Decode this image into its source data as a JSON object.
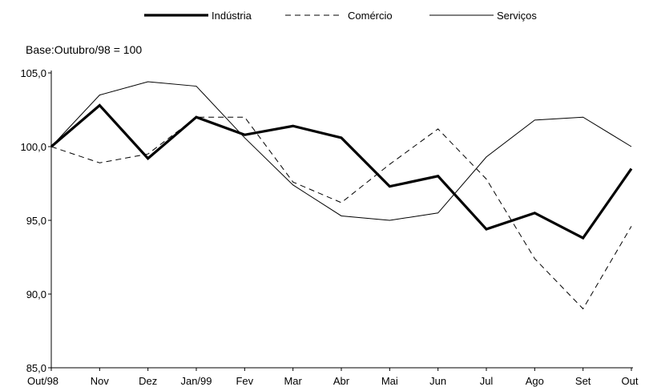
{
  "chart_data": {
    "type": "line",
    "title": "",
    "subtitle": "Base:Outubro/98 = 100",
    "xlabel": "",
    "ylabel": "",
    "categories": [
      "Out/98",
      "Nov",
      "Dez",
      "Jan/99",
      "Fev",
      "Mar",
      "Abr",
      "Mai",
      "Jun",
      "Jul",
      "Ago",
      "Set",
      "Out"
    ],
    "ylim": [
      85,
      105
    ],
    "yticks": [
      85,
      90,
      95,
      100,
      105
    ],
    "ytick_labels": [
      "85,0",
      "90,0",
      "95,0",
      "100,0",
      "105,0"
    ],
    "grid": false,
    "legend_position": "top",
    "series": [
      {
        "name": "Indústria",
        "style": "thick-solid",
        "color": "#000000",
        "values": [
          100.0,
          102.8,
          99.2,
          102.0,
          100.8,
          101.4,
          100.6,
          97.3,
          98.0,
          94.4,
          95.5,
          93.8,
          98.5
        ]
      },
      {
        "name": "Comércio",
        "style": "dashed",
        "color": "#000000",
        "values": [
          100.0,
          98.9,
          99.5,
          102.0,
          102.0,
          97.6,
          96.2,
          98.8,
          101.2,
          97.8,
          92.4,
          89.0,
          94.6
        ]
      },
      {
        "name": "Serviços",
        "style": "thin-solid",
        "color": "#000000",
        "values": [
          100.0,
          103.5,
          104.4,
          104.1,
          100.6,
          97.4,
          95.3,
          95.0,
          95.5,
          99.3,
          101.8,
          102.0,
          100.0
        ]
      }
    ]
  }
}
